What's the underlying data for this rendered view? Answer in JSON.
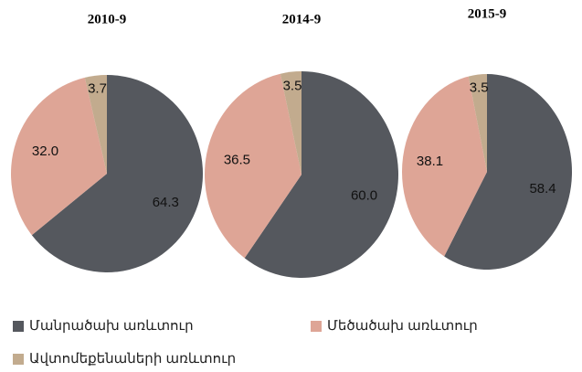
{
  "chart_data": [
    {
      "type": "pie",
      "title": "2010-9",
      "values": [
        64.3,
        32.0,
        3.7
      ],
      "value_labels": [
        "64.3",
        "32.0",
        "3.7"
      ]
    },
    {
      "type": "pie",
      "title": "2014-9",
      "values": [
        60.0,
        36.5,
        3.5
      ],
      "value_labels": [
        "60.0",
        "36.5",
        "3.5"
      ]
    },
    {
      "type": "pie",
      "title": "2015-9",
      "values": [
        58.4,
        38.1,
        3.5
      ],
      "value_labels": [
        "58.4",
        "38.1",
        "3.5"
      ]
    }
  ],
  "legend": {
    "series": [
      {
        "name": "Մանրածախ առևտուր",
        "color": "#55585e"
      },
      {
        "name": "Մեծածախ առևտուր",
        "color": "#dea596"
      },
      {
        "name": "Ավտոմեքենաների առևտուր",
        "color": "#c2ab8e"
      }
    ]
  }
}
